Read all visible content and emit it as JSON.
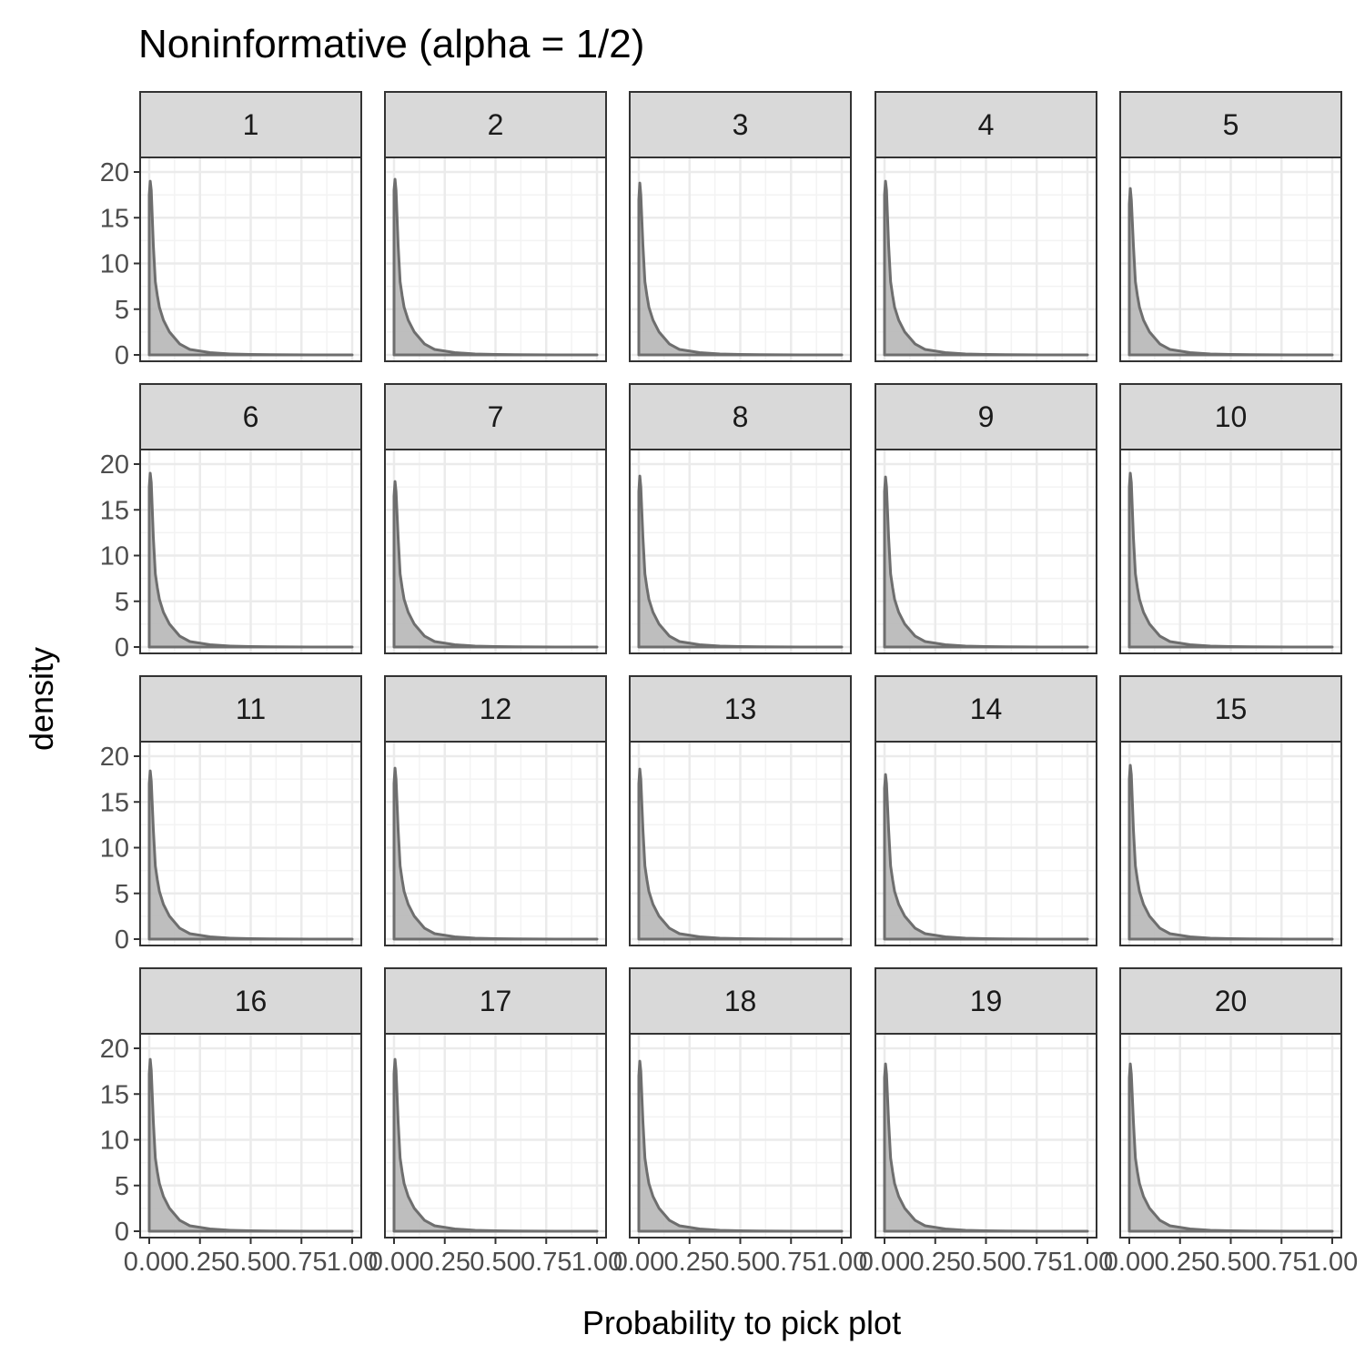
{
  "chart_data": {
    "type": "area",
    "title": "Noninformative (alpha = 1/2)",
    "xlabel": "Probability to pick plot",
    "ylabel": "density",
    "xlim": [
      0,
      1
    ],
    "ylim": [
      0,
      20
    ],
    "x_ticks": [
      0,
      0.25,
      0.5,
      0.75,
      1
    ],
    "x_tick_labels": [
      "0.00",
      "0.25",
      "0.50",
      "0.75",
      "1.00"
    ],
    "y_ticks": [
      0,
      5,
      10,
      15,
      20
    ],
    "y_tick_labels": [
      "0",
      "5",
      "10",
      "15",
      "20"
    ],
    "grid": true,
    "legend": "none",
    "panel_layout": {
      "rows": 4,
      "cols": 5
    },
    "x": [
      0,
      0.005,
      0.01,
      0.02,
      0.03,
      0.04,
      0.05,
      0.07,
      0.1,
      0.15,
      0.2,
      0.3,
      0.4,
      0.5,
      0.6,
      0.7,
      0.8,
      0.9,
      1.0
    ],
    "facets": [
      {
        "label": "1",
        "density": [
          17.5,
          19.0,
          18.0,
          12.0,
          8.0,
          6.5,
          5.2,
          3.8,
          2.5,
          1.2,
          0.6,
          0.25,
          0.1,
          0.05,
          0.02,
          0.01,
          0,
          0,
          0
        ]
      },
      {
        "label": "2",
        "density": [
          18.0,
          19.2,
          18.0,
          12.0,
          8.0,
          6.5,
          5.2,
          3.8,
          2.5,
          1.2,
          0.6,
          0.25,
          0.1,
          0.05,
          0.02,
          0.01,
          0,
          0,
          0
        ]
      },
      {
        "label": "3",
        "density": [
          17.0,
          18.8,
          17.5,
          12.0,
          8.0,
          6.5,
          5.2,
          3.8,
          2.5,
          1.2,
          0.6,
          0.25,
          0.1,
          0.05,
          0.02,
          0.01,
          0,
          0,
          0
        ]
      },
      {
        "label": "4",
        "density": [
          17.5,
          19.0,
          18.0,
          12.0,
          8.0,
          6.5,
          5.2,
          3.8,
          2.5,
          1.2,
          0.6,
          0.25,
          0.1,
          0.05,
          0.02,
          0.01,
          0,
          0,
          0
        ]
      },
      {
        "label": "5",
        "density": [
          16.5,
          18.2,
          17.0,
          12.0,
          8.0,
          6.5,
          5.2,
          3.8,
          2.5,
          1.2,
          0.6,
          0.25,
          0.1,
          0.05,
          0.02,
          0.01,
          0,
          0,
          0
        ]
      },
      {
        "label": "6",
        "density": [
          17.5,
          19.0,
          18.0,
          12.0,
          8.0,
          6.5,
          5.2,
          3.8,
          2.5,
          1.2,
          0.6,
          0.25,
          0.1,
          0.05,
          0.02,
          0.01,
          0,
          0,
          0
        ]
      },
      {
        "label": "7",
        "density": [
          16.5,
          18.1,
          17.0,
          12.0,
          8.0,
          6.5,
          5.2,
          3.8,
          2.5,
          1.2,
          0.6,
          0.25,
          0.1,
          0.05,
          0.02,
          0.01,
          0,
          0,
          0
        ]
      },
      {
        "label": "8",
        "density": [
          17.0,
          18.7,
          17.5,
          12.0,
          8.0,
          6.5,
          5.2,
          3.8,
          2.5,
          1.2,
          0.6,
          0.25,
          0.1,
          0.05,
          0.02,
          0.01,
          0,
          0,
          0
        ]
      },
      {
        "label": "9",
        "density": [
          17.0,
          18.6,
          17.5,
          12.0,
          8.0,
          6.5,
          5.2,
          3.8,
          2.5,
          1.2,
          0.6,
          0.25,
          0.1,
          0.05,
          0.02,
          0.01,
          0,
          0,
          0
        ]
      },
      {
        "label": "10",
        "density": [
          17.5,
          19.0,
          18.0,
          12.0,
          8.0,
          6.5,
          5.2,
          3.8,
          2.5,
          1.2,
          0.6,
          0.25,
          0.1,
          0.05,
          0.02,
          0.01,
          0,
          0,
          0
        ]
      },
      {
        "label": "11",
        "density": [
          17.0,
          18.4,
          17.3,
          12.0,
          8.0,
          6.5,
          5.2,
          3.8,
          2.5,
          1.2,
          0.6,
          0.25,
          0.1,
          0.05,
          0.02,
          0.01,
          0,
          0,
          0
        ]
      },
      {
        "label": "12",
        "density": [
          17.0,
          18.7,
          17.5,
          12.0,
          8.0,
          6.5,
          5.2,
          3.8,
          2.5,
          1.2,
          0.6,
          0.25,
          0.1,
          0.05,
          0.02,
          0.01,
          0,
          0,
          0
        ]
      },
      {
        "label": "13",
        "density": [
          17.0,
          18.6,
          17.5,
          12.0,
          8.0,
          6.5,
          5.2,
          3.8,
          2.5,
          1.2,
          0.6,
          0.25,
          0.1,
          0.05,
          0.02,
          0.01,
          0,
          0,
          0
        ]
      },
      {
        "label": "14",
        "density": [
          16.5,
          18.0,
          17.0,
          12.0,
          8.0,
          6.5,
          5.2,
          3.8,
          2.5,
          1.2,
          0.6,
          0.25,
          0.1,
          0.05,
          0.02,
          0.01,
          0,
          0,
          0
        ]
      },
      {
        "label": "15",
        "density": [
          17.5,
          19.0,
          18.0,
          12.0,
          8.0,
          6.5,
          5.2,
          3.8,
          2.5,
          1.2,
          0.6,
          0.25,
          0.1,
          0.05,
          0.02,
          0.01,
          0,
          0,
          0
        ]
      },
      {
        "label": "16",
        "density": [
          17.2,
          18.8,
          17.6,
          12.0,
          8.0,
          6.5,
          5.2,
          3.8,
          2.5,
          1.2,
          0.6,
          0.25,
          0.1,
          0.05,
          0.02,
          0.01,
          0,
          0,
          0
        ]
      },
      {
        "label": "17",
        "density": [
          17.2,
          18.8,
          17.6,
          12.0,
          8.0,
          6.5,
          5.2,
          3.8,
          2.5,
          1.2,
          0.6,
          0.25,
          0.1,
          0.05,
          0.02,
          0.01,
          0,
          0,
          0
        ]
      },
      {
        "label": "18",
        "density": [
          17.0,
          18.6,
          17.5,
          12.0,
          8.0,
          6.5,
          5.2,
          3.8,
          2.5,
          1.2,
          0.6,
          0.25,
          0.1,
          0.05,
          0.02,
          0.01,
          0,
          0,
          0
        ]
      },
      {
        "label": "19",
        "density": [
          16.8,
          18.3,
          17.2,
          12.0,
          8.0,
          6.5,
          5.2,
          3.8,
          2.5,
          1.2,
          0.6,
          0.25,
          0.1,
          0.05,
          0.02,
          0.01,
          0,
          0,
          0
        ]
      },
      {
        "label": "20",
        "density": [
          16.8,
          18.3,
          17.2,
          12.0,
          8.0,
          6.5,
          5.2,
          3.8,
          2.5,
          1.2,
          0.6,
          0.25,
          0.1,
          0.05,
          0.02,
          0.01,
          0,
          0,
          0
        ]
      }
    ]
  },
  "colors": {
    "panel_border": "#333333",
    "strip_fill": "#d9d9d9",
    "grid_major": "#ebebeb",
    "grid_minor": "#f3f3f3",
    "density_line": "#6e6e6e",
    "density_fill": "#b3b3b3",
    "tick_text": "#4d4d4d"
  }
}
